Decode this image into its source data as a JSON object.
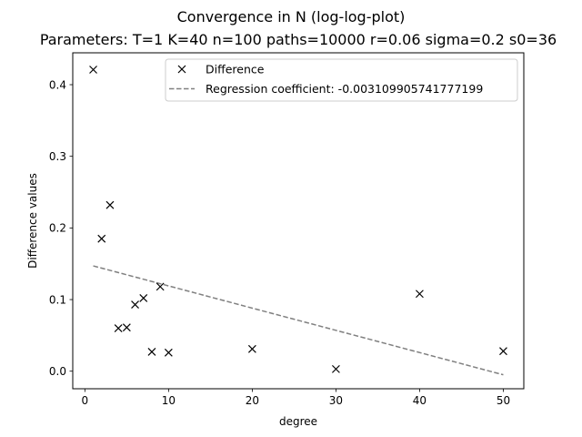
{
  "chart_data": {
    "type": "scatter",
    "title": "Convergence in N (log-log-plot)",
    "subtitle": "Parameters: T=1 K=40 n=100 paths=10000 r=0.06 sigma=0.2 s0=36",
    "xlabel": "degree",
    "ylabel": "Difference values",
    "xlim": [
      -1.45,
      52.45
    ],
    "ylim": [
      -0.0245,
      0.4445
    ],
    "xticks": [
      0,
      10,
      20,
      30,
      40,
      50
    ],
    "yticks": [
      0.0,
      0.1,
      0.2,
      0.3,
      0.4
    ],
    "xtick_labels": [
      "0",
      "10",
      "20",
      "30",
      "40",
      "50"
    ],
    "ytick_labels": [
      "0.0",
      "0.1",
      "0.2",
      "0.3",
      "0.4"
    ],
    "grid": false,
    "legend_position": "top-center",
    "series": [
      {
        "name": "Difference",
        "kind": "markers",
        "marker": "x",
        "color": "#000000",
        "x": [
          1,
          2,
          3,
          4,
          5,
          6,
          7,
          8,
          9,
          10,
          20,
          30,
          40,
          50
        ],
        "y": [
          0.421,
          0.185,
          0.232,
          0.06,
          0.061,
          0.093,
          0.102,
          0.027,
          0.118,
          0.026,
          0.031,
          0.003,
          0.108,
          0.028
        ]
      },
      {
        "name": "Regression coefficient: -0.003109905741777199",
        "kind": "dashed-line",
        "color": "#808080",
        "x": [
          1,
          50
        ],
        "y": [
          0.147,
          -0.005
        ]
      }
    ]
  }
}
